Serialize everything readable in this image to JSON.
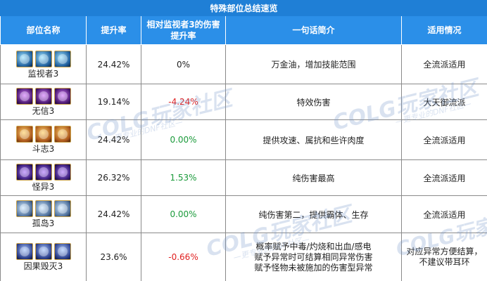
{
  "table_title": "特殊部位总结速览",
  "headers": {
    "part_name": "部位名称",
    "boost": "提升率",
    "relative_line1": "相对监视者3的伤害",
    "relative_line2": "提升率",
    "summary": "一句话简介",
    "usage": "适用情况"
  },
  "rows": [
    {
      "name": "监视者3",
      "icons": [
        "eye-artifact-icon",
        "eye-orb-icon",
        "eye-ring-icon"
      ],
      "boost": "24.42%",
      "relative": "0%",
      "relative_color": "#222222",
      "summary": "万金油，增加技能范围",
      "usage": "全流派适用"
    },
    {
      "name": "无信3",
      "icons": [
        "void-bracelet-icon",
        "void-orb-icon",
        "void-ring-icon"
      ],
      "boost": "19.14%",
      "relative": "-4.24%",
      "relative_color": "#e02020",
      "summary": "特效伤害",
      "usage": "大天御流派"
    },
    {
      "name": "斗志3",
      "icons": [
        "fist-bracelet-icon",
        "fist-orb-icon",
        "fist-ring-icon"
      ],
      "boost": "24.42%",
      "relative": "0.00%",
      "relative_color": "#1a9a3a",
      "summary": "提供攻速、属抗和些许肉度",
      "usage": "全流派适用"
    },
    {
      "name": "怪异3",
      "icons": [
        "odd-bracelet-icon",
        "odd-orb-icon",
        "odd-ring-icon"
      ],
      "boost": "26.32%",
      "relative": "1.53%",
      "relative_color": "#1a9a3a",
      "summary": "纯伤害最高",
      "usage": "全流派适用"
    },
    {
      "name": "孤岛3",
      "icons": [
        "isle-bracelet-icon",
        "isle-orb-icon",
        "isle-ring-icon"
      ],
      "boost": "24.42%",
      "relative": "0.00%",
      "relative_color": "#1a9a3a",
      "summary": "纯伤害第二，提供霸体、生存",
      "usage": "全流派适用"
    },
    {
      "name": "因果毁灭3",
      "icons": [
        "doom-bracelet-icon",
        "doom-orb-icon",
        "doom-ring-icon"
      ],
      "boost": "23.6%",
      "relative": "-0.66%",
      "relative_color": "#e02020",
      "summary_lines": [
        "概率赋予中毒/灼烧和出血/感电",
        "赋予异常时可结算相同异常伤害",
        "赋予怪物未被施加的伤害型异常"
      ],
      "usage_lines": [
        "对应异常方便结算，",
        "不建议带耳环"
      ]
    }
  ],
  "watermark": {
    "brand": "COLG玩家社区",
    "tagline": "—更专业的DNF社区—"
  }
}
